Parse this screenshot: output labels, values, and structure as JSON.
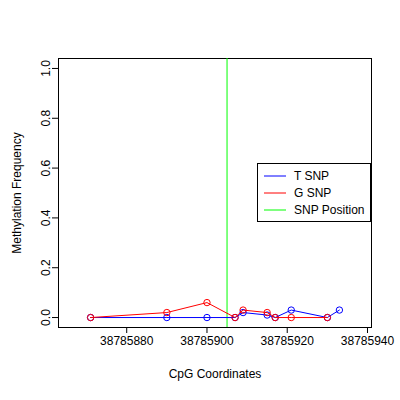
{
  "chart_data": {
    "type": "line",
    "x_label": "CpG Coordinates",
    "y_label": "Methylation Frequency",
    "x": [
      38785871,
      38785890,
      38785900,
      38785907,
      38785909,
      38785915,
      38785917,
      38785921,
      38785930,
      38785933
    ],
    "series": [
      {
        "name": "T SNP",
        "color": "#0000ff",
        "marker": "circle",
        "line_style": "solid",
        "values": [
          0,
          0,
          0,
          0,
          0.02,
          0.01,
          0,
          0.03,
          0,
          0.03
        ]
      },
      {
        "name": "G SNP",
        "color": "#ff0000",
        "marker": "circle",
        "line_style": "solid",
        "values": [
          0,
          0.02,
          0.06,
          0,
          0.03,
          0.02,
          0,
          0,
          0,
          null
        ]
      }
    ],
    "snp_position": {
      "name": "SNP Position",
      "color": "#00ff00",
      "x": 38785905
    },
    "xlim": [
      38785863,
      38785941
    ],
    "xticks": [
      38785880,
      38785900,
      38785920,
      38785940
    ],
    "ylim": [
      -0.04,
      1.04
    ],
    "yticks": [
      {
        "value": 0,
        "label": "0.0"
      },
      0.2,
      0.4,
      0.6,
      0.8,
      {
        "value": 1,
        "label": "1.0"
      }
    ],
    "legend": "right",
    "grid": false
  }
}
